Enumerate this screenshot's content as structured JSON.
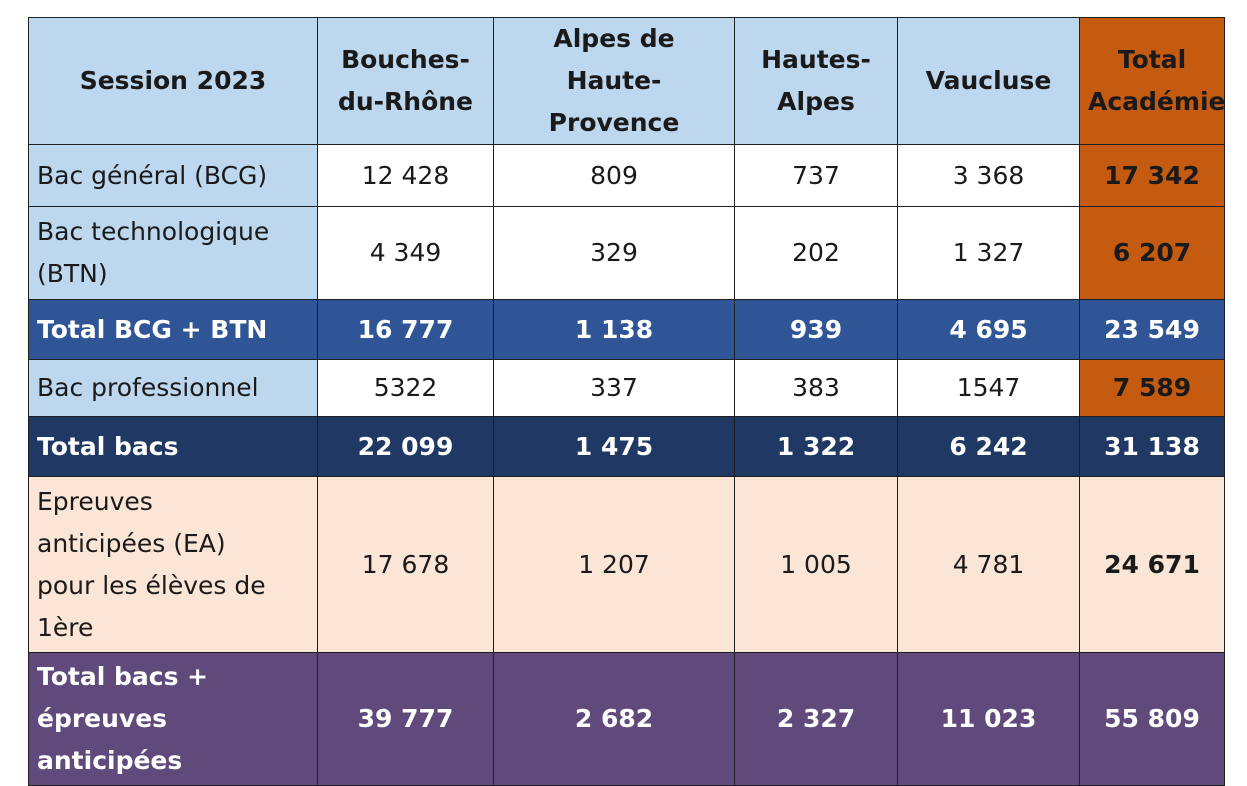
{
  "header": {
    "session": "Session 2023",
    "col1": [
      "Bouches-",
      "du-Rhône"
    ],
    "col2": [
      "Alpes de",
      "Haute-Provence"
    ],
    "col3": [
      "Hautes-",
      "Alpes"
    ],
    "col4": "Vaucluse",
    "col5": [
      "Total",
      "Académie"
    ]
  },
  "rows": {
    "bcg": {
      "label": "Bac général (BCG)",
      "v": [
        "12 428",
        "809",
        "737",
        "3 368",
        "17 342"
      ]
    },
    "btn": {
      "label": [
        "Bac technologique",
        "(BTN)"
      ],
      "v": [
        "4 349",
        "329",
        "202",
        "1 327",
        "6 207"
      ]
    },
    "total_bcg_btn": {
      "label": "Total BCG + BTN",
      "v": [
        "16 777",
        "1 138",
        "939",
        "4 695",
        "23 549"
      ]
    },
    "pro": {
      "label": "Bac professionnel",
      "v": [
        "5322",
        "337",
        "383",
        "1547",
        "7 589"
      ]
    },
    "total_bacs": {
      "label": "Total bacs",
      "v": [
        "22 099",
        "1 475",
        "1 322",
        "6 242",
        "31 138"
      ]
    },
    "ea": {
      "label": [
        "Epreuves",
        "anticipées (EA)",
        "pour les élèves de",
        "1ère"
      ],
      "v": [
        "17 678",
        "1 207",
        "1 005",
        "4 781",
        "24 671"
      ]
    },
    "total_all": {
      "label": [
        "Total bacs +",
        "épreuves",
        "anticipées"
      ],
      "v": [
        "39 777",
        "2 682",
        "2 327",
        "11 023",
        "55 809"
      ]
    }
  }
}
